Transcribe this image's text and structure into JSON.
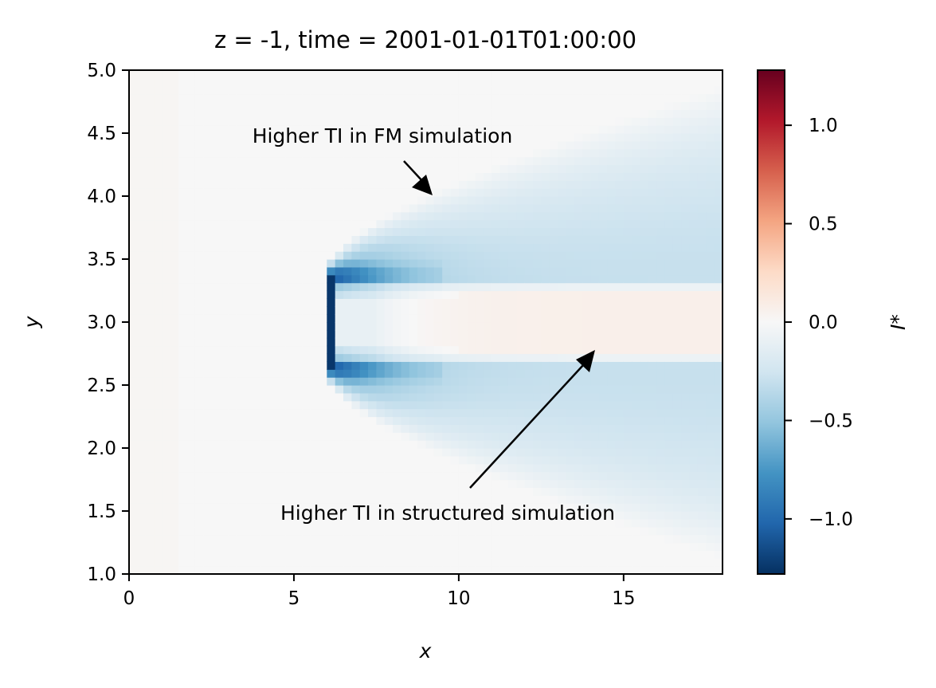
{
  "chart_data": {
    "type": "heatmap",
    "title": "z = -1, time = 2001-01-01T01:00:00",
    "xlabel": "x",
    "ylabel": "y",
    "xlim": [
      0,
      18
    ],
    "ylim": [
      1.0,
      5.0
    ],
    "x_ticks": [
      "0",
      "5",
      "10",
      "15"
    ],
    "y_ticks": [
      "1.0",
      "1.5",
      "2.0",
      "2.5",
      "3.0",
      "3.5",
      "4.0",
      "4.5",
      "5.0"
    ],
    "colorbar": {
      "label": "I*",
      "range": [
        -1.28,
        1.28
      ],
      "ticks": [
        "−1.0",
        "−0.5",
        "0.0",
        "0.5",
        "1.0"
      ],
      "colormap": "RdBu_r"
    },
    "field": {
      "description_values": [
        {
          "region": "upstream x<6",
          "value": 0.02
        },
        {
          "region": "rotor edge at x=6, y 2.7-3.35",
          "value": -1.25
        },
        {
          "region": "wake shear layers y~2.6 and y~3.4 near x=6-8",
          "value": -0.9
        },
        {
          "region": "wake core y 2.7-3.3, x>10",
          "value": 0.07
        },
        {
          "region": "expanding outer wake x>8",
          "value": -0.3
        }
      ]
    },
    "annotations": [
      {
        "text": "Higher TI in FM simulation",
        "arrow_to": [
          9.3,
          4.0
        ]
      },
      {
        "text": "Higher TI in structured simulation",
        "arrow_to": [
          14.2,
          2.78
        ]
      }
    ]
  }
}
